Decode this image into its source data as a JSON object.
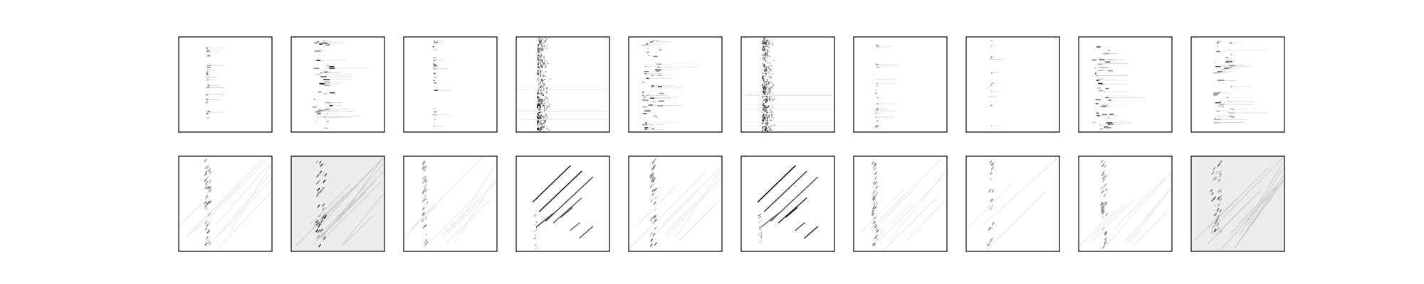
{
  "figure": {
    "rows": [
      {
        "name": "top-row",
        "panels": [
          {
            "pattern": "vertical-dots",
            "intensity": 0.55
          },
          {
            "pattern": "vertical-dots-dense",
            "intensity": 0.9
          },
          {
            "pattern": "vertical-dots",
            "intensity": 0.6
          },
          {
            "pattern": "vertical-noise-band",
            "intensity": 0.85
          },
          {
            "pattern": "vertical-dots-dense",
            "intensity": 0.75
          },
          {
            "pattern": "vertical-noise-band",
            "intensity": 0.85
          },
          {
            "pattern": "vertical-dots",
            "intensity": 0.5
          },
          {
            "pattern": "vertical-dots-sparse",
            "intensity": 0.5
          },
          {
            "pattern": "vertical-dots-dense",
            "intensity": 0.8
          },
          {
            "pattern": "vertical-dots-dense",
            "intensity": 0.65
          }
        ]
      },
      {
        "name": "bottom-row",
        "panels": [
          {
            "pattern": "vertical-band-with-diagonals",
            "intensity": 0.6
          },
          {
            "pattern": "vertical-band-with-diagonals-noisy",
            "intensity": 0.9
          },
          {
            "pattern": "vertical-band-with-diagonals",
            "intensity": 0.45
          },
          {
            "pattern": "diagonal-strokes",
            "intensity": 0.95
          },
          {
            "pattern": "vertical-band-with-diagonals",
            "intensity": 0.65
          },
          {
            "pattern": "diagonal-strokes",
            "intensity": 0.95
          },
          {
            "pattern": "vertical-band-with-diagonals",
            "intensity": 0.55
          },
          {
            "pattern": "vertical-band-faint",
            "intensity": 0.4
          },
          {
            "pattern": "vertical-band-with-diagonals",
            "intensity": 0.55
          },
          {
            "pattern": "vertical-band-with-diagonals-noisy",
            "intensity": 0.7
          }
        ]
      }
    ]
  }
}
